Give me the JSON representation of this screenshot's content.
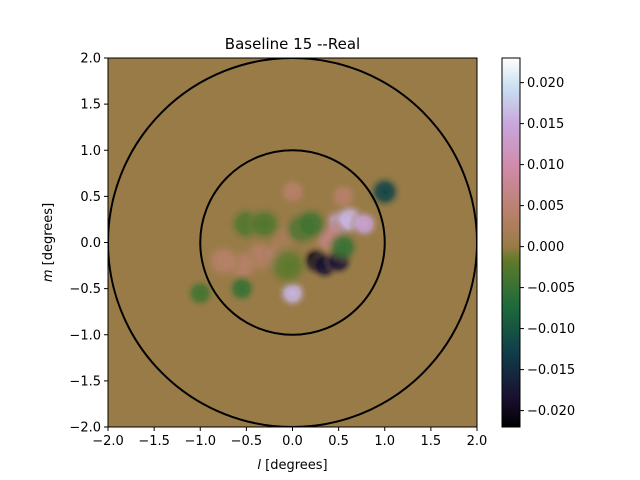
{
  "chart_data": {
    "type": "heatmap",
    "title": "Baseline 15 --Real",
    "xlabel_italic": "l",
    "xlabel_rest": " [degrees]",
    "ylabel_italic": "m",
    "ylabel_rest": " [degrees]",
    "xlim": [
      -2.0,
      2.0
    ],
    "ylim": [
      -2.0,
      2.0
    ],
    "xticks": [
      -2.0,
      -1.5,
      -1.0,
      -0.5,
      0.0,
      0.5,
      1.0,
      1.5,
      2.0
    ],
    "xtick_labels": [
      "−2.0",
      "−1.5",
      "−1.0",
      "−0.5",
      "0.0",
      "0.5",
      "1.0",
      "1.5",
      "2.0"
    ],
    "yticks": [
      -2.0,
      -1.5,
      -1.0,
      -0.5,
      0.0,
      0.5,
      1.0,
      1.5,
      2.0
    ],
    "ytick_labels": [
      "−2.0",
      "−1.5",
      "−1.0",
      "−0.5",
      "0.0",
      "0.5",
      "1.0",
      "1.5",
      "2.0"
    ],
    "background_value": 0.0,
    "blobs": [
      {
        "l": 0.0,
        "m": 0.55,
        "value": 0.004,
        "sigma": 0.08
      },
      {
        "l": 0.55,
        "m": 0.5,
        "value": 0.004,
        "sigma": 0.08
      },
      {
        "l": 1.0,
        "m": 0.55,
        "value": -0.012,
        "sigma": 0.09
      },
      {
        "l": 0.5,
        "m": 0.2,
        "value": 0.014,
        "sigma": 0.09
      },
      {
        "l": 0.62,
        "m": 0.25,
        "value": 0.016,
        "sigma": 0.09
      },
      {
        "l": 0.78,
        "m": 0.2,
        "value": 0.014,
        "sigma": 0.08
      },
      {
        "l": 0.4,
        "m": 0.05,
        "value": 0.006,
        "sigma": 0.1
      },
      {
        "l": 0.25,
        "m": -0.2,
        "value": -0.02,
        "sigma": 0.08
      },
      {
        "l": 0.35,
        "m": -0.25,
        "value": -0.018,
        "sigma": 0.08
      },
      {
        "l": 0.5,
        "m": -0.2,
        "value": -0.018,
        "sigma": 0.08
      },
      {
        "l": 0.55,
        "m": -0.05,
        "value": -0.005,
        "sigma": 0.09
      },
      {
        "l": 0.0,
        "m": -0.55,
        "value": 0.016,
        "sigma": 0.08
      },
      {
        "l": -0.35,
        "m": -0.15,
        "value": 0.004,
        "sigma": 0.1
      },
      {
        "l": -0.55,
        "m": -0.25,
        "value": 0.004,
        "sigma": 0.1
      },
      {
        "l": -0.75,
        "m": -0.2,
        "value": 0.004,
        "sigma": 0.1
      },
      {
        "l": -0.15,
        "m": -0.15,
        "value": 0.005,
        "sigma": 0.1
      },
      {
        "l": -0.1,
        "m": 0.05,
        "value": 0.002,
        "sigma": 0.1
      },
      {
        "l": -0.5,
        "m": 0.2,
        "value": -0.003,
        "sigma": 0.1
      },
      {
        "l": -0.3,
        "m": 0.2,
        "value": -0.003,
        "sigma": 0.1
      },
      {
        "l": 0.1,
        "m": 0.15,
        "value": -0.004,
        "sigma": 0.1
      },
      {
        "l": 0.2,
        "m": 0.2,
        "value": -0.004,
        "sigma": 0.1
      },
      {
        "l": -0.55,
        "m": -0.5,
        "value": -0.005,
        "sigma": 0.08
      },
      {
        "l": -1.0,
        "m": -0.55,
        "value": -0.004,
        "sigma": 0.08
      },
      {
        "l": -0.05,
        "m": -0.25,
        "value": -0.002,
        "sigma": 0.12
      }
    ],
    "circles": [
      {
        "l": 0.0,
        "m": 0.0,
        "radius": 1.0
      },
      {
        "l": 0.0,
        "m": 0.0,
        "radius": 2.0
      }
    ],
    "colorbar": {
      "vmin": -0.022,
      "vmax": 0.023,
      "ticks": [
        -0.02,
        -0.015,
        -0.01,
        -0.005,
        0.0,
        0.005,
        0.01,
        0.015,
        0.02
      ],
      "tick_labels": [
        "−0.020",
        "−0.015",
        "−0.010",
        "−0.005",
        "0.000",
        "0.005",
        "0.010",
        "0.015",
        "0.020"
      ],
      "colormap": "cubehelix-like",
      "stops": [
        [
          0.0,
          "#000000"
        ],
        [
          0.08,
          "#1a1030"
        ],
        [
          0.2,
          "#0f3d4a"
        ],
        [
          0.33,
          "#1e6b3a"
        ],
        [
          0.45,
          "#5e7a2a"
        ],
        [
          0.49,
          "#9a7b48"
        ],
        [
          0.58,
          "#b8806a"
        ],
        [
          0.7,
          "#d08aa8"
        ],
        [
          0.82,
          "#c8a6dc"
        ],
        [
          0.92,
          "#c9e0f0"
        ],
        [
          1.0,
          "#ffffff"
        ]
      ]
    }
  }
}
